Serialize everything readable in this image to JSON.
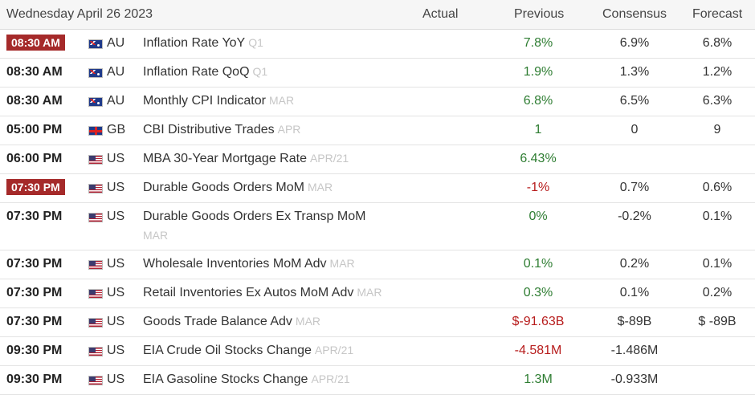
{
  "header": {
    "date": "Wednesday April 26 2023",
    "col_actual": "Actual",
    "col_previous": "Previous",
    "col_consensus": "Consensus",
    "col_forecast": "Forecast"
  },
  "colors": {
    "badge": "#a52a2a",
    "positive": "#2e7d32",
    "negative": "#b71c1c"
  },
  "rows": [
    {
      "time": "08:30 AM",
      "badge": true,
      "flag": "au-flag-icon",
      "country": "AU",
      "event": "Inflation Rate YoY",
      "period": "Q1",
      "previous": "7.8%",
      "prev_tone": "pos",
      "consensus": "6.9%",
      "forecast": "6.8%"
    },
    {
      "time": "08:30 AM",
      "badge": false,
      "flag": "au-flag-icon",
      "country": "AU",
      "event": "Inflation Rate QoQ",
      "period": "Q1",
      "previous": "1.9%",
      "prev_tone": "pos",
      "consensus": "1.3%",
      "forecast": "1.2%"
    },
    {
      "time": "08:30 AM",
      "badge": false,
      "flag": "au-flag-icon",
      "country": "AU",
      "event": "Monthly CPI Indicator",
      "period": "MAR",
      "previous": "6.8%",
      "prev_tone": "pos",
      "consensus": "6.5%",
      "forecast": "6.3%"
    },
    {
      "time": "05:00 PM",
      "badge": false,
      "flag": "gb-flag-icon",
      "country": "GB",
      "event": "CBI Distributive Trades",
      "period": "APR",
      "previous": "1",
      "prev_tone": "pos",
      "consensus": "0",
      "forecast": "9"
    },
    {
      "time": "06:00 PM",
      "badge": false,
      "flag": "us-flag-icon",
      "country": "US",
      "event": "MBA 30-Year Mortgage Rate",
      "period": "APR/21",
      "previous": "6.43%",
      "prev_tone": "pos",
      "consensus": "",
      "forecast": ""
    },
    {
      "time": "07:30 PM",
      "badge": true,
      "flag": "us-flag-icon",
      "country": "US",
      "event": "Durable Goods Orders MoM",
      "period": "MAR",
      "previous": "-1%",
      "prev_tone": "neg",
      "consensus": "0.7%",
      "forecast": "0.6%"
    },
    {
      "time": "07:30 PM",
      "badge": false,
      "flag": "us-flag-icon",
      "country": "US",
      "event": "Durable Goods Orders Ex Transp MoM",
      "period": "MAR",
      "previous": "0%",
      "prev_tone": "pos",
      "consensus": "-0.2%",
      "forecast": "0.1%"
    },
    {
      "time": "07:30 PM",
      "badge": false,
      "flag": "us-flag-icon",
      "country": "US",
      "event": "Wholesale Inventories MoM Adv",
      "period": "MAR",
      "previous": "0.1%",
      "prev_tone": "pos",
      "consensus": "0.2%",
      "forecast": "0.1%"
    },
    {
      "time": "07:30 PM",
      "badge": false,
      "flag": "us-flag-icon",
      "country": "US",
      "event": "Retail Inventories Ex Autos MoM Adv",
      "period": "MAR",
      "previous": "0.3%",
      "prev_tone": "pos",
      "consensus": "0.1%",
      "forecast": "0.2%"
    },
    {
      "time": "07:30 PM",
      "badge": false,
      "flag": "us-flag-icon",
      "country": "US",
      "event": "Goods Trade Balance Adv",
      "period": "MAR",
      "previous": "$-91.63B",
      "prev_tone": "neg",
      "consensus": "$-89B",
      "forecast": "$ -89B"
    },
    {
      "time": "09:30 PM",
      "badge": false,
      "flag": "us-flag-icon",
      "country": "US",
      "event": "EIA Crude Oil Stocks Change",
      "period": "APR/21",
      "previous": "-4.581M",
      "prev_tone": "neg",
      "consensus": "-1.486M",
      "forecast": ""
    },
    {
      "time": "09:30 PM",
      "badge": false,
      "flag": "us-flag-icon",
      "country": "US",
      "event": "EIA Gasoline Stocks Change",
      "period": "APR/21",
      "previous": "1.3M",
      "prev_tone": "pos",
      "consensus": "-0.933M",
      "forecast": ""
    }
  ]
}
